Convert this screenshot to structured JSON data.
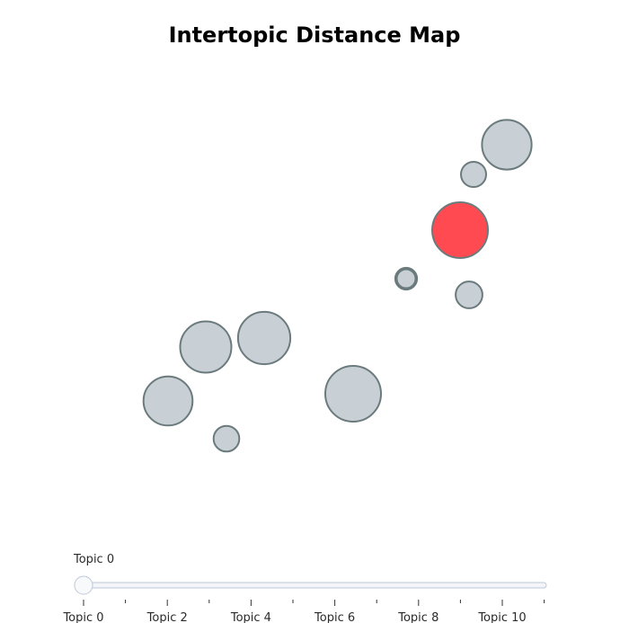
{
  "chart_data": {
    "type": "scatter",
    "title": "Intertopic Distance Map",
    "xlabel": "",
    "ylabel": "",
    "grid": false,
    "legend": "none",
    "highlight_color": "#ff4a52",
    "bubble_color": "#c8d0d5",
    "outline_color": "#6b7b7d",
    "topics": [
      {
        "topic": 0,
        "size": 1.0
      },
      {
        "topic": 1,
        "size": 0.48
      },
      {
        "topic": 2,
        "size": 0.94
      },
      {
        "topic": 3,
        "size": 0.39
      },
      {
        "topic": 4,
        "size": 0.46
      },
      {
        "topic": 5,
        "size": 0.92
      },
      {
        "topic": 6,
        "size": 0.45
      },
      {
        "topic": 7,
        "size": 0.34
      },
      {
        "topic": 8,
        "size": 0.88
      },
      {
        "topic": 9,
        "size": 1.0
      },
      {
        "topic": 10,
        "size": 0.89
      }
    ],
    "highlighted_topic": 0
  },
  "slider": {
    "current_label": "Topic 0",
    "value": 0,
    "min": 0,
    "max": 11,
    "tick_labels": [
      "Topic 0",
      "Topic 2",
      "Topic 4",
      "Topic 6",
      "Topic 8",
      "Topic 10"
    ],
    "track_color": "#f3f5f8",
    "track_border": "#bec8d9"
  }
}
